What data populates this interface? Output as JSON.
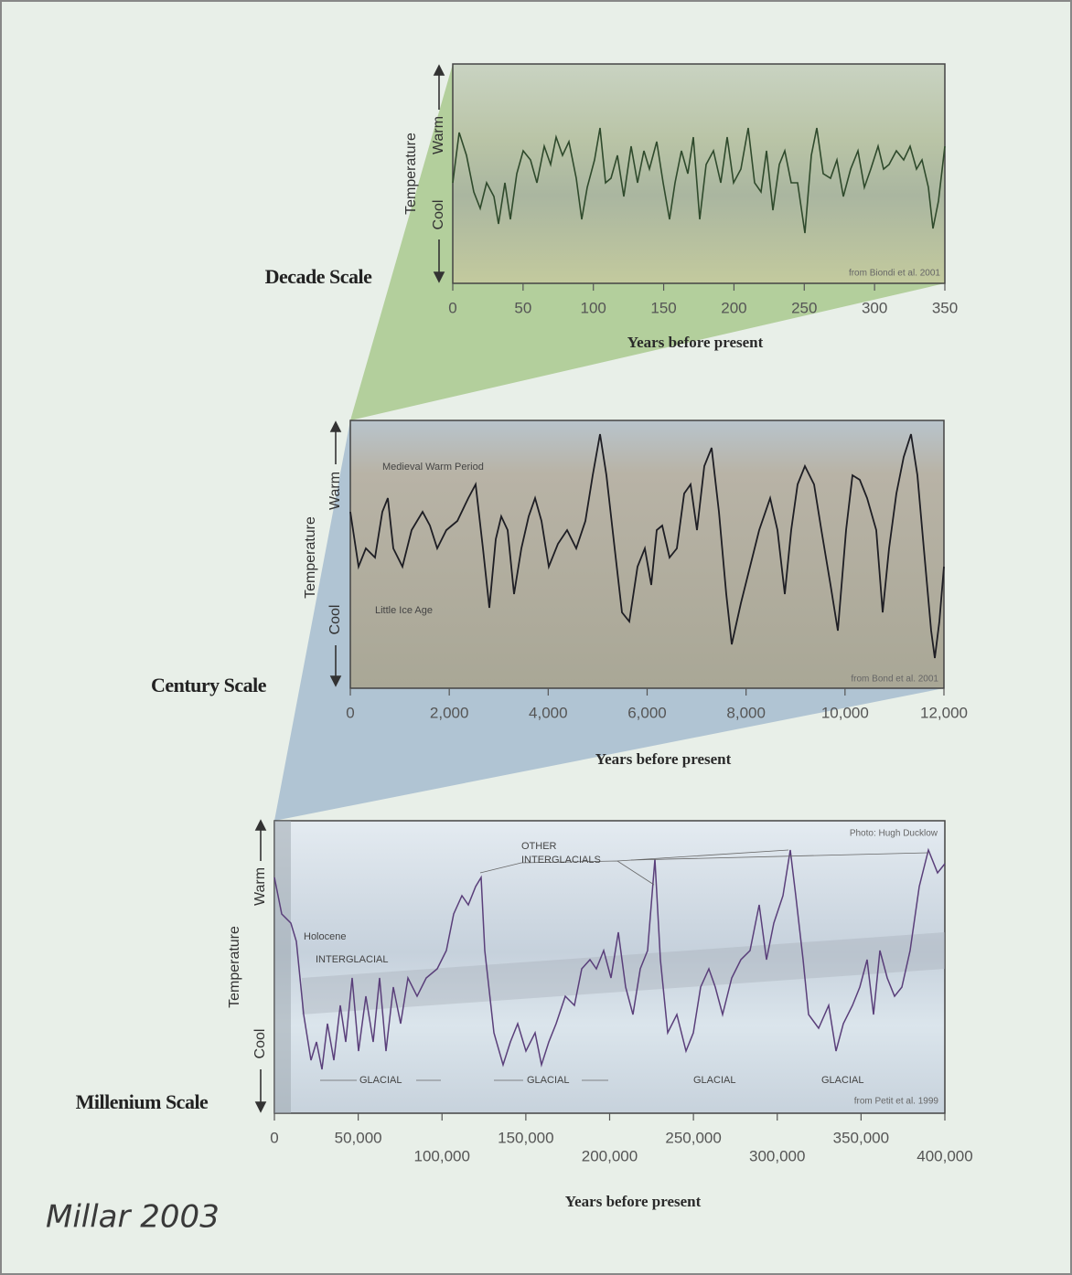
{
  "chart_data": [
    {
      "type": "line",
      "title": "Decade Scale",
      "x_label": "Years before present",
      "y_label": "Temperature",
      "y_high": "Warm",
      "y_low": "Cool",
      "xlim": [
        0,
        350
      ],
      "xticks": [
        0,
        50,
        100,
        150,
        200,
        250,
        300,
        350
      ],
      "source": "from Biondi et al. 2001",
      "color": "#2f4a2c"
    },
    {
      "type": "line",
      "title": "Century Scale",
      "x_label": "Years before present",
      "y_label": "Temperature",
      "y_high": "Warm",
      "y_low": "Cool",
      "xlim": [
        0,
        12000
      ],
      "xticks": [
        0,
        {
          "value": 2000,
          "label": "2,000"
        },
        {
          "value": 4000,
          "label": "4,000"
        },
        {
          "value": 6000,
          "label": "6,000"
        },
        {
          "value": 8000,
          "label": "8,000"
        },
        {
          "value": 10000,
          "label": "10,000"
        },
        {
          "value": 12000,
          "label": "12,000"
        }
      ],
      "source": "from Bond et al. 2001",
      "annotations": [
        "Medieval Warm Period",
        "Little Ice Age"
      ],
      "color": "#1e1e24"
    },
    {
      "type": "line",
      "title": "Millenium Scale",
      "x_label": "Years before present",
      "y_label": "Temperature",
      "y_high": "Warm",
      "y_low": "Cool",
      "xlim": [
        0,
        400000
      ],
      "xticks": [
        0,
        {
          "value": 50000,
          "label": "50,000"
        },
        {
          "value": 100000,
          "label": "100,000"
        },
        {
          "value": 150000,
          "label": "150,000"
        },
        {
          "value": 200000,
          "label": "200,000"
        },
        {
          "value": 250000,
          "label": "250,000"
        },
        {
          "value": 300000,
          "label": "300,000"
        },
        {
          "value": 350000,
          "label": "350,000"
        },
        {
          "value": 400000,
          "label": "400,000"
        }
      ],
      "source": "from Petit et al. 1999",
      "photo_credit": "Photo: Hugh Ducklow",
      "annotations": [
        "Holocene",
        "INTERGLACIAL",
        "OTHER",
        "INTERGLACIALS",
        "GLACIAL",
        "GLACIAL",
        "GLACIAL",
        "GLACIAL"
      ],
      "color": "#5a3f7a"
    }
  ],
  "credit": "Millar 2003"
}
